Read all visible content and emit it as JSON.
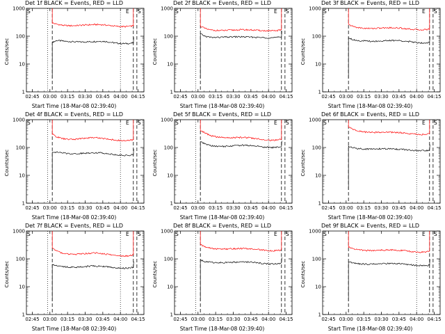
{
  "chart_data": [
    {
      "type": "line",
      "title": "Det 1f BLACK = Events, RED = LLD",
      "xlabel": "Start Time (18-Mar-08 02:39:40)",
      "ylabel": "Counts/sec",
      "yscale": "log",
      "ylim": [
        1,
        1000
      ],
      "x_ticks": [
        "02:45",
        "03:00",
        "03:15",
        "03:30",
        "03:45",
        "04:00",
        "04:15"
      ],
      "y_ticks": [
        "1",
        "10",
        "100",
        "1000"
      ],
      "markers": [
        "S",
        "E",
        "S"
      ],
      "dotted_lines": [
        "02:58",
        "04:00"
      ],
      "series": [
        {
          "name": "Events",
          "color": "#000000",
          "values": [
            60,
            70,
            68,
            65,
            64,
            63,
            62,
            62,
            63,
            64,
            65,
            66,
            64,
            60,
            57,
            55,
            54,
            55,
            57
          ]
        },
        {
          "name": "LLD",
          "color": "#ff0000",
          "values": [
            300,
            270,
            250,
            240,
            238,
            240,
            245,
            250,
            255,
            260,
            262,
            258,
            250,
            240,
            230,
            222,
            220,
            225,
            235
          ]
        }
      ]
    },
    {
      "type": "line",
      "title": "Det 2f BLACK = Events, RED = LLD",
      "xlabel": "Start Time (18-Mar-08 02:39:40)",
      "ylabel": "Counts/sec",
      "yscale": "log",
      "ylim": [
        1,
        1000
      ],
      "x_ticks": [
        "02:45",
        "03:00",
        "03:15",
        "03:30",
        "03:45",
        "04:00",
        "04:15"
      ],
      "y_ticks": [
        "1",
        "10",
        "100",
        "1000"
      ],
      "markers": [
        "S",
        "E",
        "S"
      ],
      "dotted_lines": [
        "02:58",
        "04:00"
      ],
      "series": [
        {
          "name": "Events",
          "color": "#000000",
          "values": [
            120,
            100,
            92,
            90,
            91,
            92,
            93,
            94,
            95,
            95,
            94,
            93,
            92,
            90,
            89,
            88,
            88,
            90,
            95
          ]
        },
        {
          "name": "LLD",
          "color": "#ff0000",
          "values": [
            230,
            190,
            170,
            162,
            160,
            160,
            162,
            165,
            168,
            170,
            170,
            168,
            165,
            160,
            157,
            155,
            155,
            158,
            170
          ]
        }
      ]
    },
    {
      "type": "line",
      "title": "Det 3f BLACK = Events, RED = LLD",
      "xlabel": "Start Time (18-Mar-08 02:39:40)",
      "ylabel": "Counts/sec",
      "yscale": "log",
      "ylim": [
        1,
        1000
      ],
      "x_ticks": [
        "02:45",
        "03:00",
        "03:15",
        "03:30",
        "03:45",
        "04:00",
        "04:15"
      ],
      "y_ticks": [
        "1",
        "10",
        "100",
        "1000"
      ],
      "markers": [
        "S",
        "E",
        "S"
      ],
      "dotted_lines": [
        "04:00"
      ],
      "series": [
        {
          "name": "Events",
          "color": "#000000",
          "values": [
            90,
            75,
            70,
            68,
            67,
            66,
            66,
            67,
            68,
            69,
            70,
            70,
            68,
            65,
            62,
            60,
            58,
            58,
            60
          ]
        },
        {
          "name": "LLD",
          "color": "#ff0000",
          "values": [
            260,
            225,
            205,
            195,
            190,
            190,
            192,
            195,
            198,
            200,
            200,
            198,
            192,
            185,
            178,
            172,
            170,
            172,
            180
          ]
        }
      ]
    },
    {
      "type": "line",
      "title": "Det 4f BLACK = Events, RED = LLD",
      "xlabel": "Start Time (18-Mar-08 02:39:40)",
      "ylabel": "Counts/sec",
      "yscale": "log",
      "ylim": [
        1,
        1000
      ],
      "x_ticks": [
        "02:45",
        "03:00",
        "03:15",
        "03:30",
        "03:45",
        "04:00",
        "04:15"
      ],
      "y_ticks": [
        "1",
        "10",
        "100",
        "1000"
      ],
      "markers": [
        "S",
        "E",
        "S"
      ],
      "dotted_lines": [
        "02:58",
        "04:00"
      ],
      "series": [
        {
          "name": "Events",
          "color": "#000000",
          "values": [
            70,
            68,
            65,
            62,
            60,
            60,
            61,
            62,
            64,
            65,
            65,
            64,
            62,
            58,
            55,
            53,
            52,
            53,
            55
          ]
        },
        {
          "name": "LLD",
          "color": "#ff0000",
          "values": [
            300,
            240,
            215,
            200,
            195,
            198,
            205,
            215,
            222,
            228,
            225,
            215,
            205,
            195,
            185,
            178,
            175,
            178,
            190
          ]
        }
      ]
    },
    {
      "type": "line",
      "title": "Det 5f BLACK = Events, RED = LLD",
      "xlabel": "Start Time (18-Mar-08 02:39:40)",
      "ylabel": "Counts/sec",
      "yscale": "log",
      "ylim": [
        1,
        1000
      ],
      "x_ticks": [
        "02:45",
        "03:00",
        "03:15",
        "03:30",
        "03:45",
        "04:00",
        "04:15"
      ],
      "y_ticks": [
        "1",
        "10",
        "100",
        "1000"
      ],
      "markers": [
        "S",
        "E",
        "S"
      ],
      "dotted_lines": [
        "02:58",
        "04:00"
      ],
      "series": [
        {
          "name": "Events",
          "color": "#000000",
          "values": [
            160,
            135,
            120,
            112,
            110,
            110,
            112,
            115,
            118,
            120,
            120,
            118,
            115,
            110,
            105,
            102,
            100,
            102,
            108
          ]
        },
        {
          "name": "LLD",
          "color": "#ff0000",
          "values": [
            420,
            330,
            280,
            250,
            235,
            228,
            225,
            225,
            228,
            230,
            228,
            222,
            212,
            202,
            192,
            186,
            182,
            185,
            198
          ]
        }
      ]
    },
    {
      "type": "line",
      "title": "Det 6f BLACK = Events, RED = LLD",
      "xlabel": "Start Time (18-Mar-08 02:39:40)",
      "ylabel": "Counts/sec",
      "yscale": "log",
      "ylim": [
        1,
        1000
      ],
      "x_ticks": [
        "02:45",
        "03:00",
        "03:15",
        "03:30",
        "03:45",
        "04:00",
        "04:15"
      ],
      "y_ticks": [
        "1",
        "10",
        "100",
        "1000"
      ],
      "markers": [
        "S",
        "E",
        "S"
      ],
      "dotted_lines": [
        "04:00"
      ],
      "series": [
        {
          "name": "Events",
          "color": "#000000",
          "values": [
            110,
            98,
            92,
            90,
            88,
            88,
            89,
            90,
            90,
            90,
            89,
            87,
            85,
            82,
            79,
            77,
            76,
            77,
            80
          ]
        },
        {
          "name": "LLD",
          "color": "#ff0000",
          "values": [
            540,
            450,
            400,
            370,
            355,
            350,
            350,
            352,
            355,
            355,
            352,
            345,
            335,
            322,
            310,
            300,
            295,
            298,
            310
          ]
        }
      ]
    },
    {
      "type": "line",
      "title": "Det 7f BLACK = Events, RED = LLD",
      "xlabel": "Start Time (18-Mar-08 02:39:40)",
      "ylabel": "Counts/sec",
      "yscale": "log",
      "ylim": [
        1,
        1000
      ],
      "x_ticks": [
        "02:45",
        "03:00",
        "03:15",
        "03:30",
        "03:45",
        "04:00",
        "04:15"
      ],
      "y_ticks": [
        "1",
        "10",
        "100",
        "1000"
      ],
      "markers": [
        "S",
        "E",
        "S"
      ],
      "dotted_lines": [
        "02:58",
        "04:00"
      ],
      "series": [
        {
          "name": "Events",
          "color": "#000000",
          "values": [
            65,
            58,
            54,
            52,
            50,
            50,
            51,
            52,
            54,
            55,
            55,
            54,
            52,
            50,
            48,
            47,
            46,
            47,
            50
          ]
        },
        {
          "name": "LLD",
          "color": "#ff0000",
          "values": [
            250,
            190,
            165,
            152,
            145,
            145,
            148,
            152,
            158,
            162,
            160,
            155,
            148,
            140,
            133,
            128,
            126,
            128,
            138
          ]
        }
      ]
    },
    {
      "type": "line",
      "title": "Det 8f BLACK = Events, RED = LLD",
      "xlabel": "Start Time (18-Mar-08 02:39:40)",
      "ylabel": "Counts/sec",
      "yscale": "log",
      "ylim": [
        1,
        1000
      ],
      "x_ticks": [
        "02:45",
        "03:00",
        "03:15",
        "03:30",
        "03:45",
        "04:00",
        "04:15"
      ],
      "y_ticks": [
        "1",
        "10",
        "100",
        "1000"
      ],
      "markers": [
        "S",
        "E",
        "S"
      ],
      "dotted_lines": [
        "02:58",
        "04:00"
      ],
      "series": [
        {
          "name": "Events",
          "color": "#000000",
          "values": [
            90,
            80,
            76,
            74,
            73,
            73,
            74,
            75,
            76,
            77,
            77,
            76,
            74,
            71,
            68,
            66,
            65,
            66,
            70
          ]
        },
        {
          "name": "LLD",
          "color": "#ff0000",
          "values": [
            320,
            270,
            245,
            232,
            226,
            225,
            226,
            230,
            234,
            236,
            235,
            230,
            222,
            214,
            205,
            198,
            195,
            198,
            210
          ]
        }
      ]
    },
    {
      "type": "line",
      "title": "Det 9f BLACK = Events, RED = LLD",
      "xlabel": "Start Time (18-Mar-08 02:39:40)",
      "ylabel": "Counts/sec",
      "yscale": "log",
      "ylim": [
        1,
        1000
      ],
      "x_ticks": [
        "02:45",
        "03:00",
        "03:15",
        "03:30",
        "03:45",
        "04:00",
        "04:15"
      ],
      "y_ticks": [
        "1",
        "10",
        "100",
        "1000"
      ],
      "markers": [
        "S",
        "E",
        "S"
      ],
      "dotted_lines": [
        "04:00"
      ],
      "series": [
        {
          "name": "Events",
          "color": "#000000",
          "values": [
            80,
            72,
            68,
            66,
            65,
            65,
            65,
            66,
            67,
            68,
            68,
            67,
            65,
            62,
            60,
            58,
            57,
            58,
            60
          ]
        },
        {
          "name": "LLD",
          "color": "#ff0000",
          "values": [
            270,
            235,
            215,
            205,
            200,
            200,
            202,
            205,
            208,
            210,
            208,
            204,
            198,
            190,
            182,
            176,
            173,
            175,
            185
          ]
        }
      ]
    }
  ]
}
